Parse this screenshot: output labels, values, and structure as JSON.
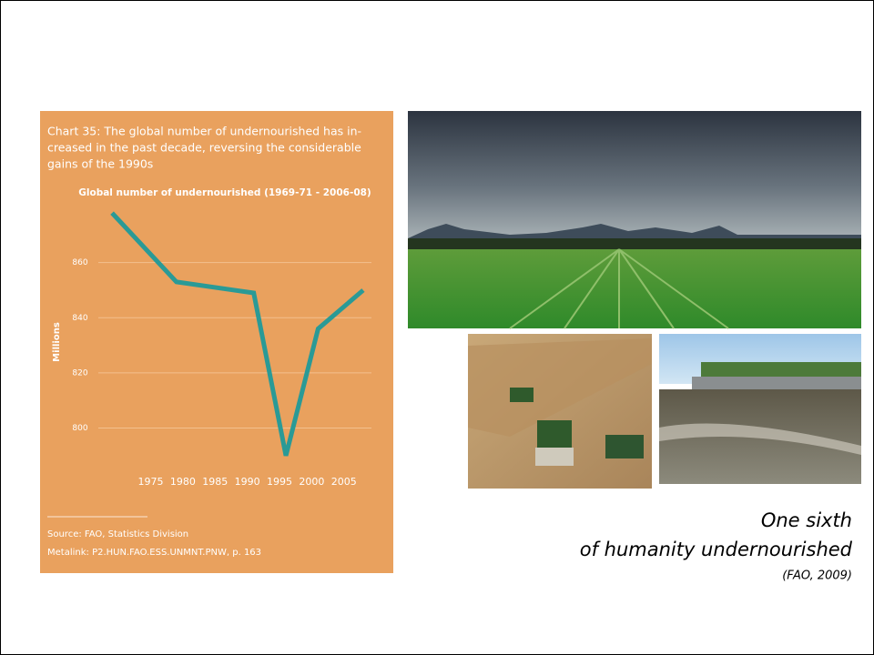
{
  "chart_data": {
    "type": "line",
    "title": [
      "Chart 35: The global number of undernourished has in-",
      "creased in the past decade, reversing the considerable",
      "gains of the 1990s"
    ],
    "subtitle": "Global number of undernourished (1969-71 - 2006-08)",
    "y_label": "Millions",
    "x": [
      1969,
      1979,
      1991,
      1996,
      2001,
      2008
    ],
    "values": [
      878,
      853,
      849,
      790,
      836,
      850
    ],
    "color": "#2a9a96",
    "xlim": [
      1968,
      2009
    ],
    "xticks": [
      1975,
      1980,
      1985,
      1990,
      1995,
      2000,
      2005
    ],
    "ylim": [
      785,
      882
    ],
    "yticks": [
      800,
      820,
      840,
      860
    ],
    "grid": true,
    "source": [
      "Source: FAO, Statistics Division",
      "Metalink: P2.HUN.FAO.ESS.UNMNT.PNW, p. 163"
    ]
  },
  "slide": {
    "caption": [
      "One sixth",
      "of humanity undernourished"
    ],
    "citation": "(FAO, 2009)"
  }
}
